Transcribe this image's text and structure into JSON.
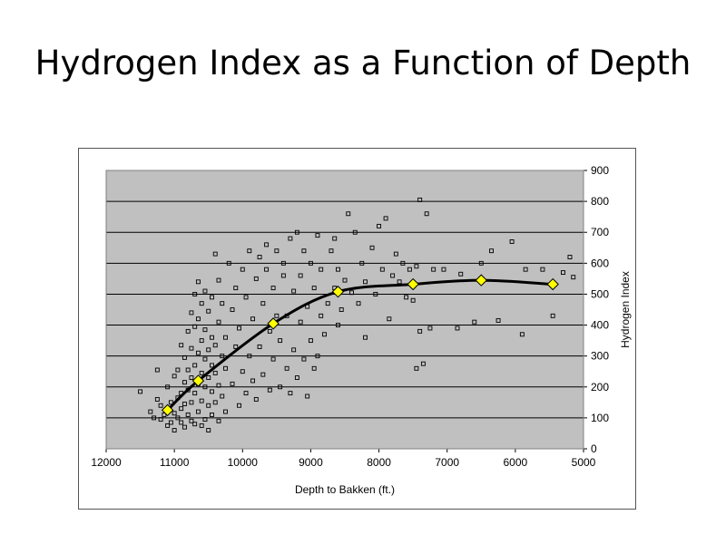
{
  "slide": {
    "title": "Hydrogen Index as a Function of Depth"
  },
  "chart_data": {
    "type": "scatter",
    "title": "",
    "xlabel": "Depth to Bakken (ft.)",
    "ylabel": "Hydrogen Index",
    "xlim": [
      12000,
      5000
    ],
    "ylim": [
      0,
      900
    ],
    "x_reversed": true,
    "xticks": [
      "12000",
      "11000",
      "10000",
      "9000",
      "8000",
      "7000",
      "6000",
      "5000"
    ],
    "yticks": [
      "0",
      "100",
      "200",
      "300",
      "400",
      "500",
      "600",
      "700",
      "800",
      "900"
    ],
    "y_axis_position": "right",
    "plot_background": "#c0c0c0",
    "grid": "horizontal",
    "marker_color": "#000000",
    "trend_color": "#000000",
    "diamond_fill": "#ffff00",
    "series": [
      {
        "type": "scatter",
        "marker": "hollow-square",
        "points": [
          [
            11500,
            185
          ],
          [
            11350,
            120
          ],
          [
            11300,
            100
          ],
          [
            11250,
            160
          ],
          [
            11250,
            255
          ],
          [
            11200,
            95
          ],
          [
            11200,
            140
          ],
          [
            11150,
            110
          ],
          [
            11100,
            75
          ],
          [
            11100,
            200
          ],
          [
            11050,
            85
          ],
          [
            11050,
            150
          ],
          [
            11000,
            60
          ],
          [
            11000,
            115
          ],
          [
            11000,
            235
          ],
          [
            10950,
            100
          ],
          [
            10950,
            165
          ],
          [
            10950,
            255
          ],
          [
            10900,
            85
          ],
          [
            10900,
            130
          ],
          [
            10900,
            180
          ],
          [
            10900,
            335
          ],
          [
            10850,
            70
          ],
          [
            10850,
            145
          ],
          [
            10850,
            215
          ],
          [
            10850,
            295
          ],
          [
            10800,
            110
          ],
          [
            10800,
            190
          ],
          [
            10800,
            255
          ],
          [
            10800,
            380
          ],
          [
            10750,
            90
          ],
          [
            10750,
            150
          ],
          [
            10750,
            230
          ],
          [
            10750,
            325
          ],
          [
            10750,
            440
          ],
          [
            10700,
            80
          ],
          [
            10700,
            180
          ],
          [
            10700,
            270
          ],
          [
            10700,
            395
          ],
          [
            10700,
            500
          ],
          [
            10650,
            120
          ],
          [
            10650,
            210
          ],
          [
            10650,
            310
          ],
          [
            10650,
            420
          ],
          [
            10650,
            540
          ],
          [
            10600,
            75
          ],
          [
            10600,
            155
          ],
          [
            10600,
            245
          ],
          [
            10600,
            350
          ],
          [
            10600,
            470
          ],
          [
            10550,
            95
          ],
          [
            10550,
            200
          ],
          [
            10550,
            290
          ],
          [
            10550,
            385
          ],
          [
            10550,
            510
          ],
          [
            10500,
            60
          ],
          [
            10500,
            140
          ],
          [
            10500,
            230
          ],
          [
            10500,
            320
          ],
          [
            10500,
            445
          ],
          [
            10450,
            110
          ],
          [
            10450,
            185
          ],
          [
            10450,
            270
          ],
          [
            10450,
            360
          ],
          [
            10450,
            490
          ],
          [
            10400,
            150
          ],
          [
            10400,
            245
          ],
          [
            10400,
            335
          ],
          [
            10400,
            630
          ],
          [
            10350,
            90
          ],
          [
            10350,
            205
          ],
          [
            10350,
            410
          ],
          [
            10350,
            545
          ],
          [
            10300,
            170
          ],
          [
            10300,
            300
          ],
          [
            10300,
            470
          ],
          [
            10250,
            120
          ],
          [
            10250,
            260
          ],
          [
            10250,
            360
          ],
          [
            10200,
            600
          ],
          [
            10150,
            210
          ],
          [
            10150,
            450
          ],
          [
            10100,
            330
          ],
          [
            10100,
            520
          ],
          [
            10050,
            140
          ],
          [
            10050,
            390
          ],
          [
            10000,
            250
          ],
          [
            10000,
            580
          ],
          [
            9950,
            180
          ],
          [
            9950,
            490
          ],
          [
            9900,
            300
          ],
          [
            9900,
            640
          ],
          [
            9850,
            220
          ],
          [
            9850,
            420
          ],
          [
            9800,
            160
          ],
          [
            9800,
            550
          ],
          [
            9750,
            330
          ],
          [
            9750,
            620
          ],
          [
            9700,
            240
          ],
          [
            9700,
            470
          ],
          [
            9650,
            580
          ],
          [
            9650,
            660
          ],
          [
            9600,
            190
          ],
          [
            9600,
            380
          ],
          [
            9550,
            290
          ],
          [
            9550,
            520
          ],
          [
            9500,
            430
          ],
          [
            9500,
            640
          ],
          [
            9450,
            200
          ],
          [
            9450,
            350
          ],
          [
            9400,
            560
          ],
          [
            9400,
            600
          ],
          [
            9350,
            260
          ],
          [
            9350,
            430
          ],
          [
            9300,
            180
          ],
          [
            9300,
            680
          ],
          [
            9250,
            320
          ],
          [
            9250,
            510
          ],
          [
            9200,
            230
          ],
          [
            9200,
            700
          ],
          [
            9150,
            410
          ],
          [
            9150,
            560
          ],
          [
            9100,
            290
          ],
          [
            9100,
            640
          ],
          [
            9050,
            170
          ],
          [
            9050,
            460
          ],
          [
            9000,
            350
          ],
          [
            9000,
            600
          ],
          [
            8950,
            260
          ],
          [
            8950,
            520
          ],
          [
            8900,
            300
          ],
          [
            8900,
            690
          ],
          [
            8850,
            430
          ],
          [
            8850,
            580
          ],
          [
            8800,
            370
          ],
          [
            8750,
            470
          ],
          [
            8700,
            640
          ],
          [
            8650,
            520
          ],
          [
            8650,
            680
          ],
          [
            8600,
            400
          ],
          [
            8600,
            580
          ],
          [
            8550,
            450
          ],
          [
            8500,
            545
          ],
          [
            8450,
            760
          ],
          [
            8400,
            505
          ],
          [
            8350,
            700
          ],
          [
            8300,
            470
          ],
          [
            8250,
            600
          ],
          [
            8200,
            360
          ],
          [
            8200,
            540
          ],
          [
            8100,
            650
          ],
          [
            8050,
            500
          ],
          [
            8000,
            720
          ],
          [
            7950,
            580
          ],
          [
            7900,
            745
          ],
          [
            7850,
            420
          ],
          [
            7800,
            560
          ],
          [
            7750,
            630
          ],
          [
            7700,
            540
          ],
          [
            7650,
            600
          ],
          [
            7600,
            490
          ],
          [
            7550,
            580
          ],
          [
            7500,
            480
          ],
          [
            7450,
            260
          ],
          [
            7450,
            590
          ],
          [
            7400,
            380
          ],
          [
            7400,
            805
          ],
          [
            7350,
            275
          ],
          [
            7300,
            760
          ],
          [
            7250,
            390
          ],
          [
            7200,
            580
          ],
          [
            7050,
            580
          ],
          [
            6850,
            390
          ],
          [
            6800,
            565
          ],
          [
            6600,
            410
          ],
          [
            6500,
            600
          ],
          [
            6350,
            640
          ],
          [
            6250,
            415
          ],
          [
            6050,
            670
          ],
          [
            5900,
            370
          ],
          [
            5850,
            580
          ],
          [
            5600,
            580
          ],
          [
            5450,
            430
          ],
          [
            5300,
            570
          ],
          [
            5200,
            620
          ],
          [
            5150,
            555
          ]
        ]
      },
      {
        "type": "line",
        "smooth": true,
        "marker": "yellow-diamond",
        "points": [
          [
            11100,
            125
          ],
          [
            10650,
            220
          ],
          [
            9550,
            405
          ],
          [
            8600,
            508
          ],
          [
            7500,
            532
          ],
          [
            6500,
            545
          ],
          [
            5450,
            532
          ]
        ]
      }
    ]
  }
}
